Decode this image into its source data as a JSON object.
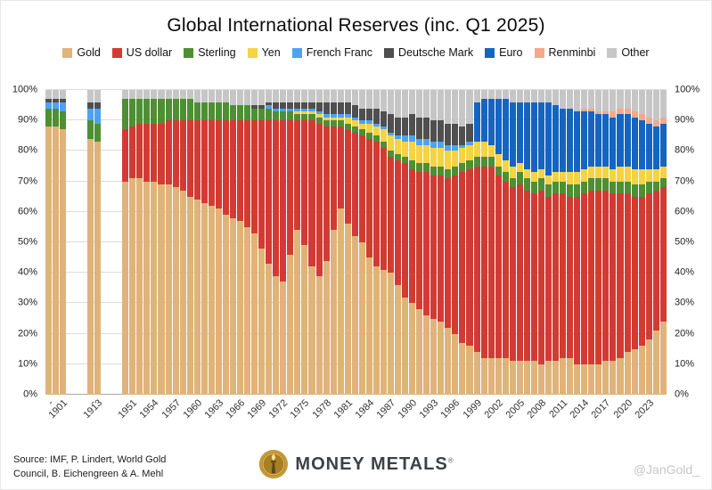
{
  "title": "Global International Reserves (inc. Q1 2025)",
  "watermark": "@JanGold_",
  "footer": {
    "source_line1": "Source: IMF, P. Lindert, World Gold",
    "source_line2": "Council, B. Eichengreen & A. Mehl",
    "brand_name": "MONEY METALS",
    "brand_registered": "®"
  },
  "brand_colors": {
    "coin_outer": "#c79a3a",
    "coin_inner": "#a87f22",
    "flame": "#ffe08a",
    "torch": "#5f4712"
  },
  "chart_data": {
    "type": "bar",
    "stacked": true,
    "percent": true,
    "title": "Global International Reserves (inc. Q1 2025)",
    "ylabel": "",
    "xlabel": "",
    "ylim": [
      0,
      100
    ],
    "grid": true,
    "legend_position": "top",
    "yticks": [
      "0%",
      "10%",
      "20%",
      "30%",
      "40%",
      "50%",
      "60%",
      "70%",
      "80%",
      "90%",
      "100%"
    ],
    "series_names": [
      "Gold",
      "US dollar",
      "Sterling",
      "Yen",
      "French Franc",
      "Deutsche Mark",
      "Euro",
      "Renminbi",
      "Other"
    ],
    "colors": [
      "#DFB379",
      "#D23B34",
      "#4E8F33",
      "#F5D342",
      "#4CA3F5",
      "#4F4F4F",
      "#1565C0",
      "#F4A98B",
      "#C6C6C6"
    ],
    "xticks": [
      {
        "year": "1899",
        "label": "-"
      },
      {
        "year": "1901",
        "label": "1901"
      },
      {
        "year": "1912",
        "label": "-"
      },
      {
        "year": "1913",
        "label": "1913"
      },
      {
        "year": "1951",
        "label": "1951"
      },
      {
        "year": "1954",
        "label": "1954"
      },
      {
        "year": "1957",
        "label": "1957"
      },
      {
        "year": "1960",
        "label": "1960"
      },
      {
        "year": "1963",
        "label": "1963"
      },
      {
        "year": "1966",
        "label": "1966"
      },
      {
        "year": "1969",
        "label": "1969"
      },
      {
        "year": "1972",
        "label": "1972"
      },
      {
        "year": "1975",
        "label": "1975"
      },
      {
        "year": "1978",
        "label": "1978"
      },
      {
        "year": "1981",
        "label": "1981"
      },
      {
        "year": "1984",
        "label": "1984"
      },
      {
        "year": "1987",
        "label": "1987"
      },
      {
        "year": "1990",
        "label": "1990"
      },
      {
        "year": "1993",
        "label": "1993"
      },
      {
        "year": "1996",
        "label": "1996"
      },
      {
        "year": "1999",
        "label": "1999"
      },
      {
        "year": "2002",
        "label": "2002"
      },
      {
        "year": "2005",
        "label": "2005"
      },
      {
        "year": "2008",
        "label": "2008"
      },
      {
        "year": "2011",
        "label": "2011"
      },
      {
        "year": "2014",
        "label": "2014"
      },
      {
        "year": "2017",
        "label": "2017"
      },
      {
        "year": "2020",
        "label": "2020"
      },
      {
        "year": "2023",
        "label": "2023"
      }
    ],
    "groups": [
      {
        "name": "pre-WWI",
        "years": [
          "1899",
          "1900",
          "1901"
        ],
        "bars": [
          [
            88,
            0,
            6,
            0,
            2,
            1,
            0,
            0,
            3
          ],
          [
            88,
            0,
            6,
            0,
            2,
            1,
            0,
            0,
            3
          ],
          [
            87,
            0,
            6,
            0,
            3,
            1,
            0,
            0,
            3
          ]
        ]
      },
      {
        "name": "1913",
        "years": [
          "1912",
          "1913"
        ],
        "bars": [
          [
            84,
            0,
            6,
            0,
            4,
            2,
            0,
            0,
            4
          ],
          [
            83,
            0,
            6,
            0,
            5,
            2,
            0,
            0,
            4
          ]
        ]
      },
      {
        "name": "postwar",
        "years": [
          "1950",
          "1951",
          "1952",
          "1953",
          "1954",
          "1955",
          "1956",
          "1957",
          "1958",
          "1959",
          "1960",
          "1961",
          "1962",
          "1963",
          "1964",
          "1965",
          "1966",
          "1967",
          "1968",
          "1969",
          "1970",
          "1971",
          "1972",
          "1973",
          "1974",
          "1975",
          "1976",
          "1977",
          "1978",
          "1979",
          "1980",
          "1981",
          "1982",
          "1983",
          "1984",
          "1985",
          "1986",
          "1987",
          "1988",
          "1989",
          "1990",
          "1991",
          "1992",
          "1993",
          "1994",
          "1995",
          "1996",
          "1997",
          "1998",
          "1999",
          "2000",
          "2001",
          "2002",
          "2003",
          "2004",
          "2005",
          "2006",
          "2007",
          "2008",
          "2009",
          "2010",
          "2011",
          "2012",
          "2013",
          "2014",
          "2015",
          "2016",
          "2017",
          "2018",
          "2019",
          "2020",
          "2021",
          "2022",
          "2023",
          "2024",
          "2025"
        ],
        "bars": [
          [
            70,
            17,
            10,
            0,
            0,
            0,
            0,
            0,
            3
          ],
          [
            71,
            17,
            9,
            0,
            0,
            0,
            0,
            0,
            3
          ],
          [
            71,
            18,
            8,
            0,
            0,
            0,
            0,
            0,
            3
          ],
          [
            70,
            19,
            8,
            0,
            0,
            0,
            0,
            0,
            3
          ],
          [
            70,
            19,
            8,
            0,
            0,
            0,
            0,
            0,
            3
          ],
          [
            69,
            20,
            8,
            0,
            0,
            0,
            0,
            0,
            3
          ],
          [
            69,
            21,
            7,
            0,
            0,
            0,
            0,
            0,
            3
          ],
          [
            68,
            22,
            7,
            0,
            0,
            0,
            0,
            0,
            3
          ],
          [
            67,
            23,
            7,
            0,
            0,
            0,
            0,
            0,
            3
          ],
          [
            65,
            25,
            7,
            0,
            0,
            0,
            0,
            0,
            3
          ],
          [
            64,
            26,
            6,
            0,
            0,
            0,
            0,
            0,
            4
          ],
          [
            63,
            27,
            6,
            0,
            0,
            0,
            0,
            0,
            4
          ],
          [
            62,
            28,
            6,
            0,
            0,
            0,
            0,
            0,
            4
          ],
          [
            61,
            29,
            6,
            0,
            0,
            0,
            0,
            0,
            4
          ],
          [
            59,
            31,
            6,
            0,
            0,
            0,
            0,
            0,
            4
          ],
          [
            58,
            32,
            5,
            0,
            0,
            0,
            0,
            0,
            5
          ],
          [
            57,
            33,
            5,
            0,
            0,
            0,
            0,
            0,
            5
          ],
          [
            55,
            35,
            5,
            0,
            0,
            0,
            0,
            0,
            5
          ],
          [
            53,
            37,
            4,
            0,
            0,
            1,
            0,
            0,
            5
          ],
          [
            48,
            42,
            4,
            0,
            0,
            1,
            0,
            0,
            5
          ],
          [
            43,
            47,
            4,
            0,
            1,
            1,
            0,
            0,
            4
          ],
          [
            39,
            51,
            3,
            0,
            1,
            2,
            0,
            0,
            4
          ],
          [
            37,
            53,
            3,
            0,
            1,
            2,
            0,
            0,
            4
          ],
          [
            46,
            44,
            3,
            0,
            1,
            2,
            0,
            0,
            4
          ],
          [
            54,
            36,
            2,
            1,
            1,
            2,
            0,
            0,
            4
          ],
          [
            49,
            41,
            2,
            1,
            1,
            2,
            0,
            0,
            4
          ],
          [
            42,
            48,
            2,
            1,
            1,
            2,
            0,
            0,
            4
          ],
          [
            39,
            50,
            2,
            1,
            1,
            3,
            0,
            0,
            4
          ],
          [
            44,
            44,
            2,
            1,
            1,
            4,
            0,
            0,
            4
          ],
          [
            54,
            34,
            2,
            1,
            1,
            4,
            0,
            0,
            4
          ],
          [
            61,
            27,
            2,
            1,
            1,
            4,
            0,
            0,
            4
          ],
          [
            56,
            31,
            2,
            2,
            1,
            4,
            0,
            0,
            4
          ],
          [
            52,
            34,
            2,
            2,
            1,
            4,
            0,
            0,
            5
          ],
          [
            50,
            35,
            2,
            2,
            1,
            4,
            0,
            0,
            6
          ],
          [
            45,
            39,
            2,
            3,
            1,
            4,
            0,
            0,
            6
          ],
          [
            42,
            41,
            2,
            3,
            1,
            5,
            0,
            0,
            6
          ],
          [
            41,
            40,
            2,
            4,
            1,
            5,
            0,
            0,
            7
          ],
          [
            40,
            38,
            2,
            5,
            1,
            6,
            0,
            0,
            8
          ],
          [
            36,
            41,
            2,
            5,
            1,
            6,
            0,
            0,
            9
          ],
          [
            32,
            44,
            2,
            5,
            2,
            6,
            0,
            0,
            9
          ],
          [
            30,
            44,
            3,
            6,
            2,
            7,
            0,
            0,
            8
          ],
          [
            28,
            45,
            3,
            6,
            2,
            7,
            0,
            0,
            9
          ],
          [
            26,
            47,
            3,
            6,
            2,
            7,
            0,
            0,
            9
          ],
          [
            25,
            47,
            3,
            6,
            2,
            7,
            0,
            0,
            10
          ],
          [
            24,
            48,
            3,
            6,
            2,
            7,
            0,
            0,
            10
          ],
          [
            22,
            49,
            3,
            6,
            2,
            7,
            0,
            0,
            11
          ],
          [
            20,
            52,
            3,
            5,
            2,
            7,
            0,
            0,
            11
          ],
          [
            17,
            56,
            3,
            5,
            1,
            6,
            0,
            0,
            12
          ],
          [
            16,
            58,
            3,
            5,
            1,
            6,
            0,
            0,
            11
          ],
          [
            14,
            61,
            3,
            5,
            0,
            0,
            13,
            0,
            4
          ],
          [
            12,
            63,
            3,
            5,
            0,
            0,
            14,
            0,
            3
          ],
          [
            12,
            63,
            3,
            4,
            0,
            0,
            15,
            0,
            3
          ],
          [
            12,
            60,
            3,
            4,
            0,
            0,
            18,
            0,
            3
          ],
          [
            12,
            58,
            3,
            4,
            0,
            0,
            20,
            0,
            3
          ],
          [
            11,
            57,
            3,
            4,
            0,
            0,
            21,
            0,
            4
          ],
          [
            11,
            58,
            4,
            3,
            0,
            0,
            20,
            0,
            4
          ],
          [
            11,
            56,
            4,
            3,
            0,
            0,
            22,
            0,
            4
          ],
          [
            11,
            55,
            4,
            3,
            0,
            0,
            23,
            0,
            4
          ],
          [
            10,
            57,
            4,
            3,
            0,
            0,
            22,
            0,
            4
          ],
          [
            11,
            54,
            4,
            3,
            0,
            0,
            24,
            0,
            4
          ],
          [
            11,
            55,
            4,
            3,
            0,
            0,
            22,
            0,
            5
          ],
          [
            12,
            54,
            4,
            3,
            0,
            0,
            21,
            0,
            6
          ],
          [
            12,
            53,
            4,
            4,
            0,
            0,
            21,
            0,
            6
          ],
          [
            10,
            55,
            4,
            4,
            0,
            0,
            20,
            0,
            7
          ],
          [
            10,
            56,
            4,
            4,
            0,
            0,
            19,
            1,
            6
          ],
          [
            10,
            57,
            4,
            4,
            0,
            0,
            18,
            1,
            6
          ],
          [
            10,
            57,
            4,
            4,
            0,
            0,
            17,
            1,
            7
          ],
          [
            11,
            56,
            4,
            4,
            0,
            0,
            17,
            1,
            7
          ],
          [
            11,
            55,
            4,
            4,
            0,
            0,
            17,
            2,
            7
          ],
          [
            12,
            54,
            4,
            5,
            0,
            0,
            17,
            2,
            6
          ],
          [
            14,
            52,
            4,
            5,
            0,
            0,
            17,
            2,
            6
          ],
          [
            15,
            50,
            4,
            5,
            0,
            0,
            17,
            2,
            7
          ],
          [
            16,
            49,
            4,
            5,
            0,
            0,
            16,
            2,
            8
          ],
          [
            18,
            48,
            4,
            4,
            0,
            0,
            15,
            2,
            9
          ],
          [
            21,
            46,
            3,
            4,
            0,
            0,
            14,
            2,
            10
          ],
          [
            24,
            44,
            3,
            4,
            0,
            0,
            14,
            2,
            9
          ]
        ]
      }
    ]
  }
}
